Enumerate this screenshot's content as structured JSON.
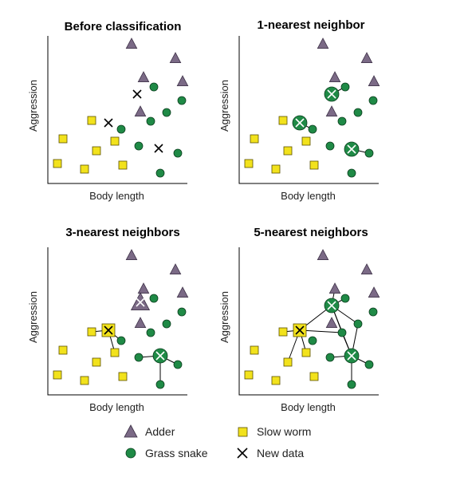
{
  "colors": {
    "adder": "#7b6a86",
    "slow_worm": "#f2e21c",
    "grass_snake": "#1f8a46",
    "new_data": "#000000"
  },
  "panels": [
    {
      "title": "Before classification",
      "xlabel": "Body length",
      "ylabel": "Aggression"
    },
    {
      "title": "1-nearest neighbor",
      "xlabel": "Body length",
      "ylabel": "Aggression"
    },
    {
      "title": "3-nearest neighbors",
      "xlabel": "Body length",
      "ylabel": "Aggression"
    },
    {
      "title": "5-nearest neighbors",
      "xlabel": "Body length",
      "ylabel": "Aggression"
    }
  ],
  "legend": {
    "adder": "Adder",
    "grass_snake": "Grass snake",
    "slow_worm": "Slow worm",
    "new_data": "New data"
  }
}
